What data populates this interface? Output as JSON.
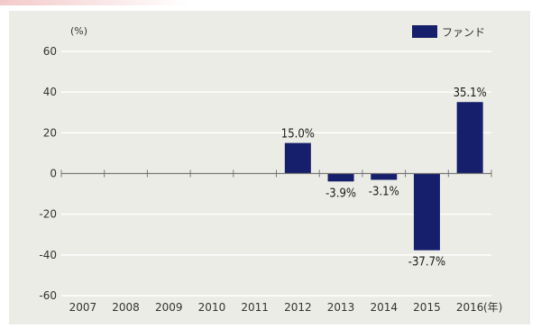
{
  "chart_data": {
    "type": "bar",
    "y_unit": "(%)",
    "x_unit": "(年)",
    "categories": [
      "2007",
      "2008",
      "2009",
      "2010",
      "2011",
      "2012",
      "2013",
      "2014",
      "2015",
      "2016"
    ],
    "series": [
      {
        "name": "ファンド",
        "values": [
          null,
          null,
          null,
          null,
          null,
          15.0,
          -3.9,
          -3.1,
          -37.7,
          35.1
        ],
        "labels": [
          "",
          "",
          "",
          "",
          "",
          "15.0%",
          "-3.9%",
          "-3.1%",
          "-37.7%",
          "35.1%"
        ],
        "color": "#161f6b"
      }
    ],
    "ylim": [
      -60,
      60
    ],
    "yticks": [
      60,
      40,
      20,
      0,
      -20,
      -40,
      -60
    ],
    "grid": true,
    "legend": "top-right"
  }
}
